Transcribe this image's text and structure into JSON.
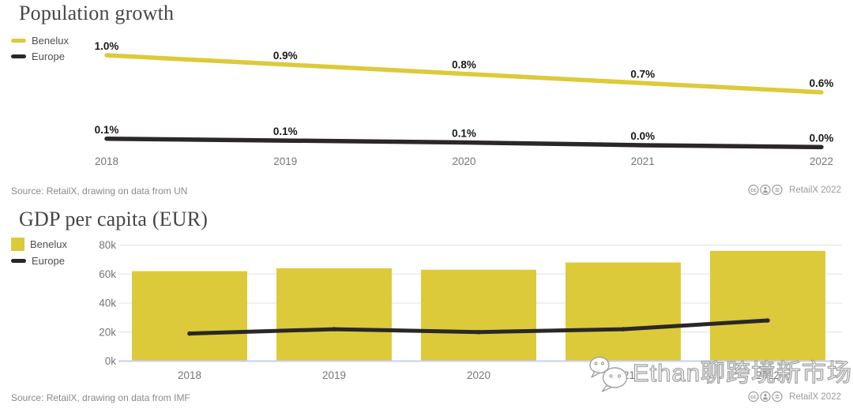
{
  "colors": {
    "benelux": "#dcca3a",
    "europe": "#2b2727",
    "title": "#464646",
    "axis_label": "#767676",
    "value_label": "#191919",
    "grid": "#e6e6ee",
    "baseline": "#c7d0e9",
    "source": "#8a8a8a",
    "credit": "#9b9b9b"
  },
  "charts": [
    {
      "title": "Population growth",
      "legend": [
        {
          "label": "Benelux"
        },
        {
          "label": "Europe"
        }
      ],
      "source": "Source: RetailX, drawing on data from UN",
      "credit": "RetailX 2022"
    },
    {
      "title": "GDP per capita (EUR)",
      "legend": [
        {
          "label": "Benelux"
        },
        {
          "label": "Europe"
        }
      ],
      "source": "Source: RetailX, drawing on data from IMF",
      "credit": "RetailX 2022"
    }
  ],
  "watermark": {
    "text": "Ethan聊跨境新市场",
    "icon": "wechat-logo"
  },
  "chart_data": [
    {
      "type": "line",
      "title": "Population growth",
      "categories": [
        "2018",
        "2019",
        "2020",
        "2021",
        "2022"
      ],
      "series": [
        {
          "name": "Benelux",
          "color": "#dcca3a",
          "values": [
            1.0,
            0.9,
            0.8,
            0.7,
            0.6
          ],
          "labels": [
            "1.0%",
            "0.9%",
            "0.8%",
            "0.7%",
            "0.6%"
          ]
        },
        {
          "name": "Europe",
          "color": "#2b2727",
          "values": [
            0.1,
            0.08,
            0.06,
            0.03,
            0.01
          ],
          "labels": [
            "0.1%",
            "0.1%",
            "0.1%",
            "0.0%",
            "0.0%"
          ]
        }
      ],
      "unit": "%",
      "ylim": [
        0,
        1.05
      ],
      "grid": false,
      "value_labels": true,
      "legend_position": "top-left",
      "source": "Source: RetailX, drawing on data from UN",
      "credit": "RetailX 2022"
    },
    {
      "type": "bar",
      "title": "GDP per capita (EUR)",
      "categories": [
        "2018",
        "2019",
        "2020",
        "2021",
        "2022"
      ],
      "series": [
        {
          "name": "Benelux",
          "kind": "bar",
          "color": "#dcca3a",
          "values": [
            62000,
            64000,
            63000,
            68000,
            76000
          ]
        },
        {
          "name": "Europe",
          "kind": "line",
          "color": "#2b2727",
          "values": [
            19000,
            22000,
            20000,
            22000,
            28000
          ]
        }
      ],
      "ylim": [
        0,
        80000
      ],
      "yticks": [
        0,
        20000,
        40000,
        60000,
        80000
      ],
      "ytick_labels": [
        "0k",
        "20k",
        "40k",
        "60k",
        "80k"
      ],
      "grid": true,
      "legend_position": "top-left",
      "source": "Source: RetailX, drawing on data from IMF",
      "credit": "RetailX 2022"
    }
  ]
}
